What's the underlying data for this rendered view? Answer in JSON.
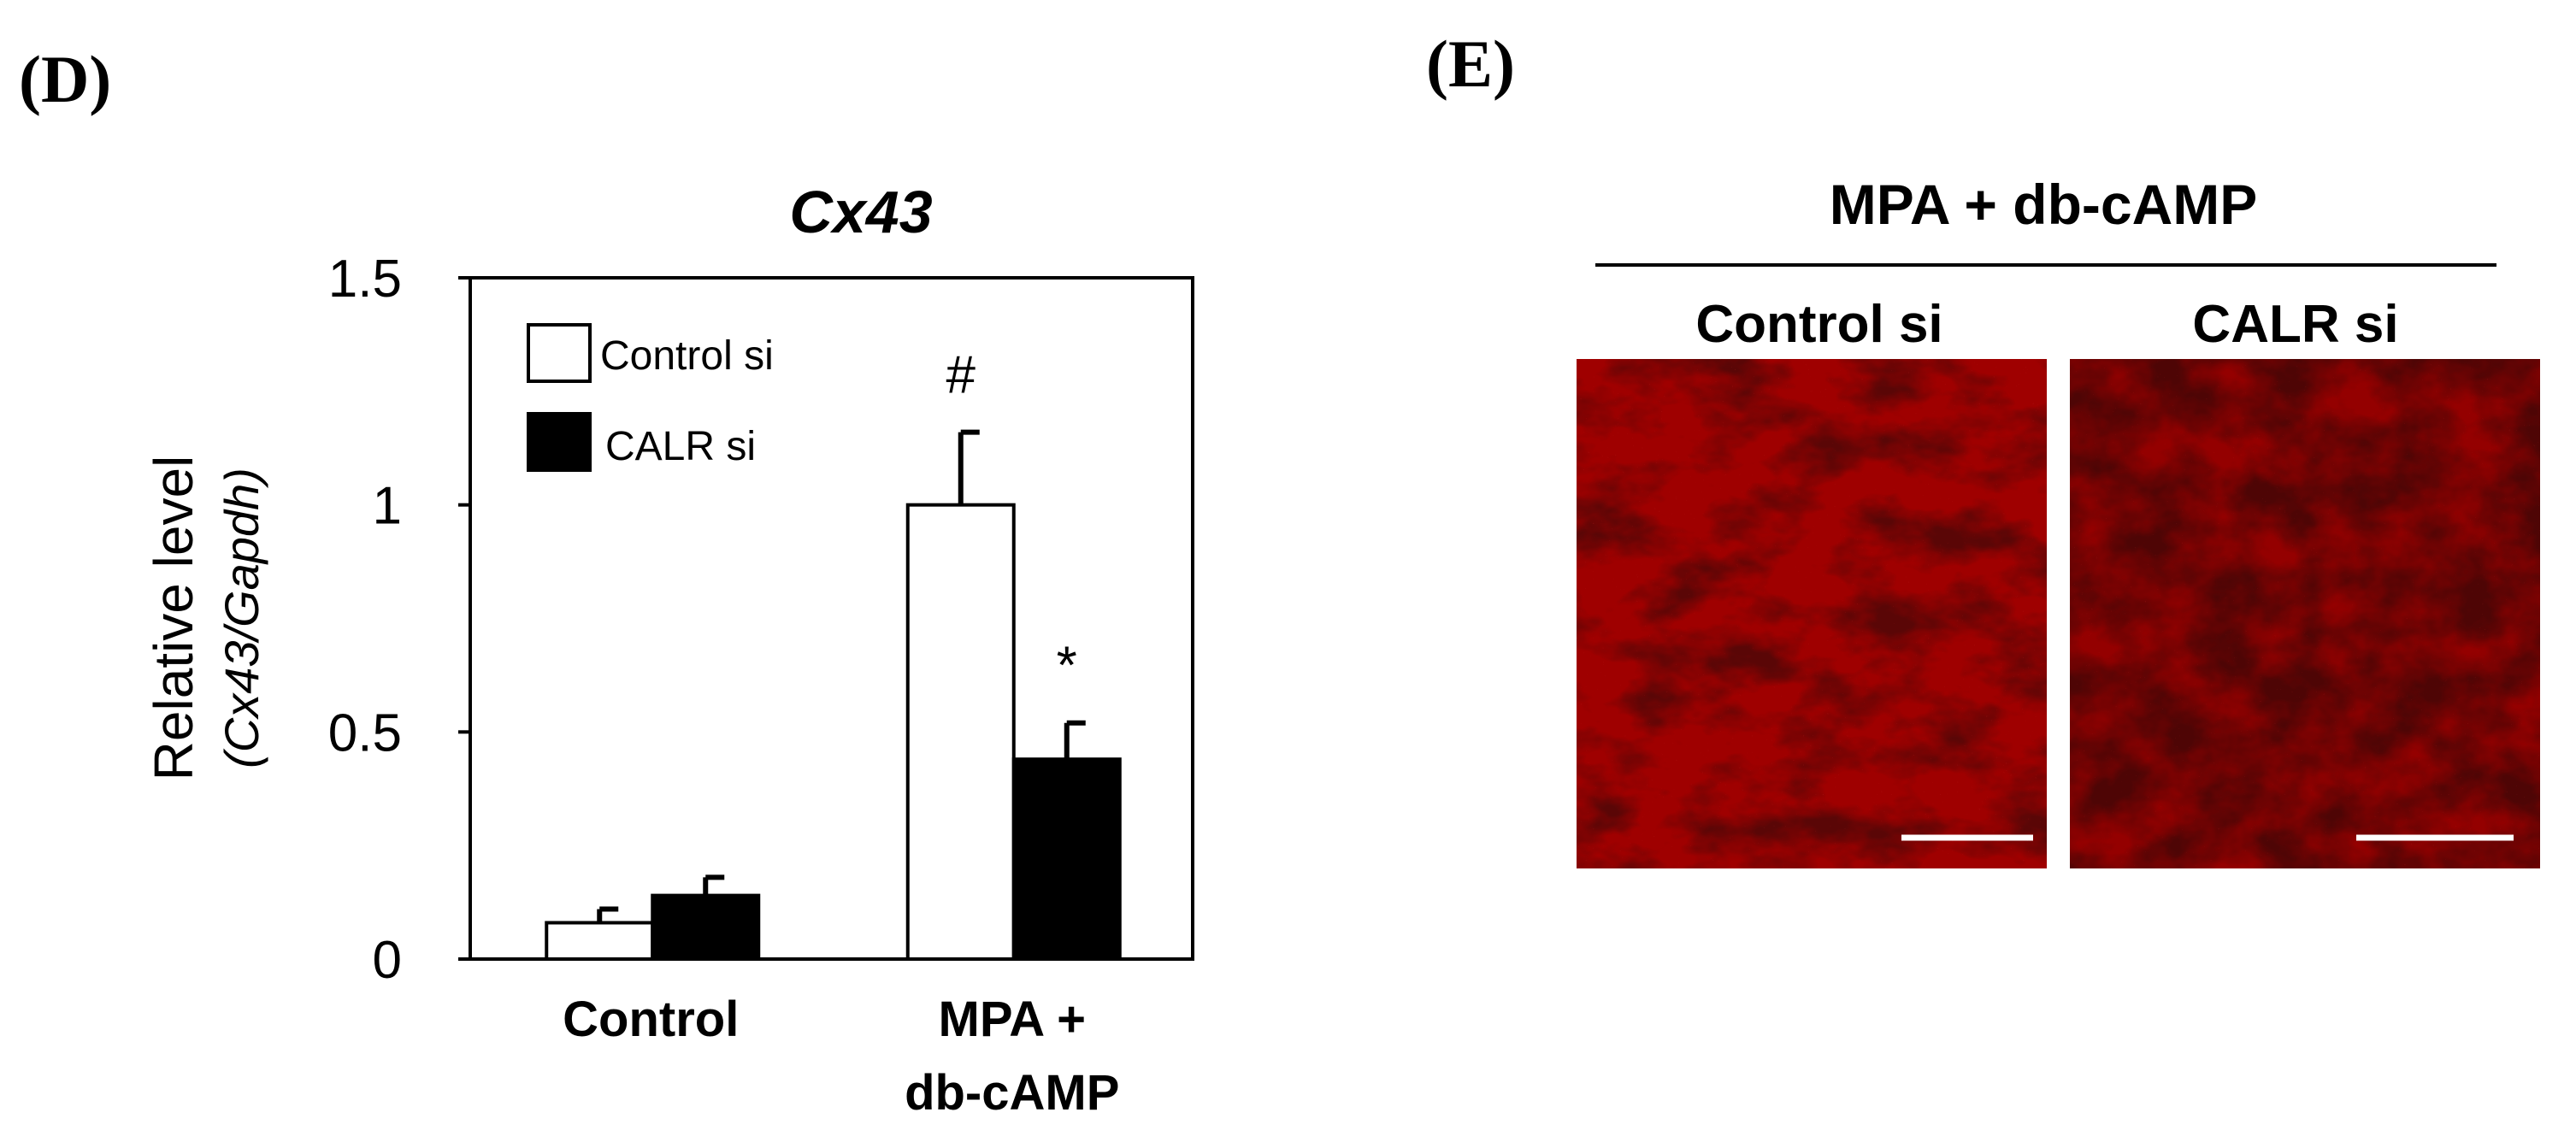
{
  "panels": {
    "d_label": "(D)",
    "e_label": "(E)"
  },
  "chart_data": {
    "type": "bar",
    "title": "Cx43",
    "ylabel": "Relative level",
    "ylabel_sub": "(Cx43/Gapdh)",
    "ylim": [
      0,
      1.5
    ],
    "yticks": [
      {
        "value": 0,
        "label": "0"
      },
      {
        "value": 0.5,
        "label": "0.5"
      },
      {
        "value": 1,
        "label": "1"
      },
      {
        "value": 1.5,
        "label": "1.5"
      }
    ],
    "categories": [
      "Control",
      "MPA + db-cAMP"
    ],
    "category_lines": [
      [
        "Control"
      ],
      [
        "MPA +",
        "db-cAMP"
      ]
    ],
    "series": [
      {
        "name": "Control si",
        "values": [
          0.08,
          1.0
        ],
        "errors": [
          0.03,
          0.16
        ],
        "color": "#ffffff"
      },
      {
        "name": "CALR si",
        "values": [
          0.14,
          0.44
        ],
        "errors": [
          0.04,
          0.08
        ],
        "color": "#000000"
      }
    ],
    "annotations": [
      {
        "text": "#",
        "category": 1,
        "series": 0
      },
      {
        "text": "*",
        "category": 1,
        "series": 1
      }
    ],
    "legend_position": "top-left",
    "grid": false
  },
  "images": {
    "header": "MPA + db-cAMP",
    "columns": [
      "Control si",
      "CALR si"
    ],
    "stain_color": "#cc1010",
    "background_color": "#5a0606"
  }
}
